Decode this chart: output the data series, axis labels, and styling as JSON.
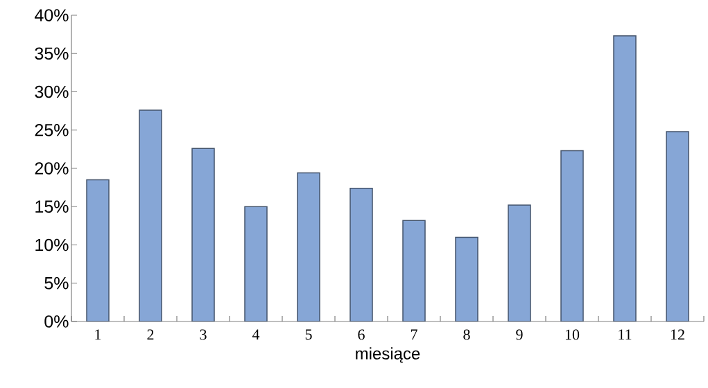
{
  "chart_data": {
    "type": "bar",
    "xlabel": "miesiące",
    "categories": [
      "1",
      "2",
      "3",
      "4",
      "5",
      "6",
      "7",
      "8",
      "9",
      "10",
      "11",
      "12"
    ],
    "values": [
      18.5,
      27.6,
      22.6,
      15.0,
      19.4,
      17.4,
      13.2,
      11.0,
      15.2,
      22.3,
      37.3,
      24.8
    ],
    "color": "#86a6d6",
    "ylim": [
      0,
      40
    ],
    "yticks": [
      {
        "value": 0,
        "label": "0%"
      },
      {
        "value": 5,
        "label": "5%"
      },
      {
        "value": 10,
        "label": "10%"
      },
      {
        "value": 15,
        "label": "15%"
      },
      {
        "value": 20,
        "label": "20%"
      },
      {
        "value": 25,
        "label": "25%"
      },
      {
        "value": 30,
        "label": "30%"
      },
      {
        "value": 35,
        "label": "35%"
      },
      {
        "value": 40,
        "label": "40%"
      }
    ],
    "grid": false
  }
}
